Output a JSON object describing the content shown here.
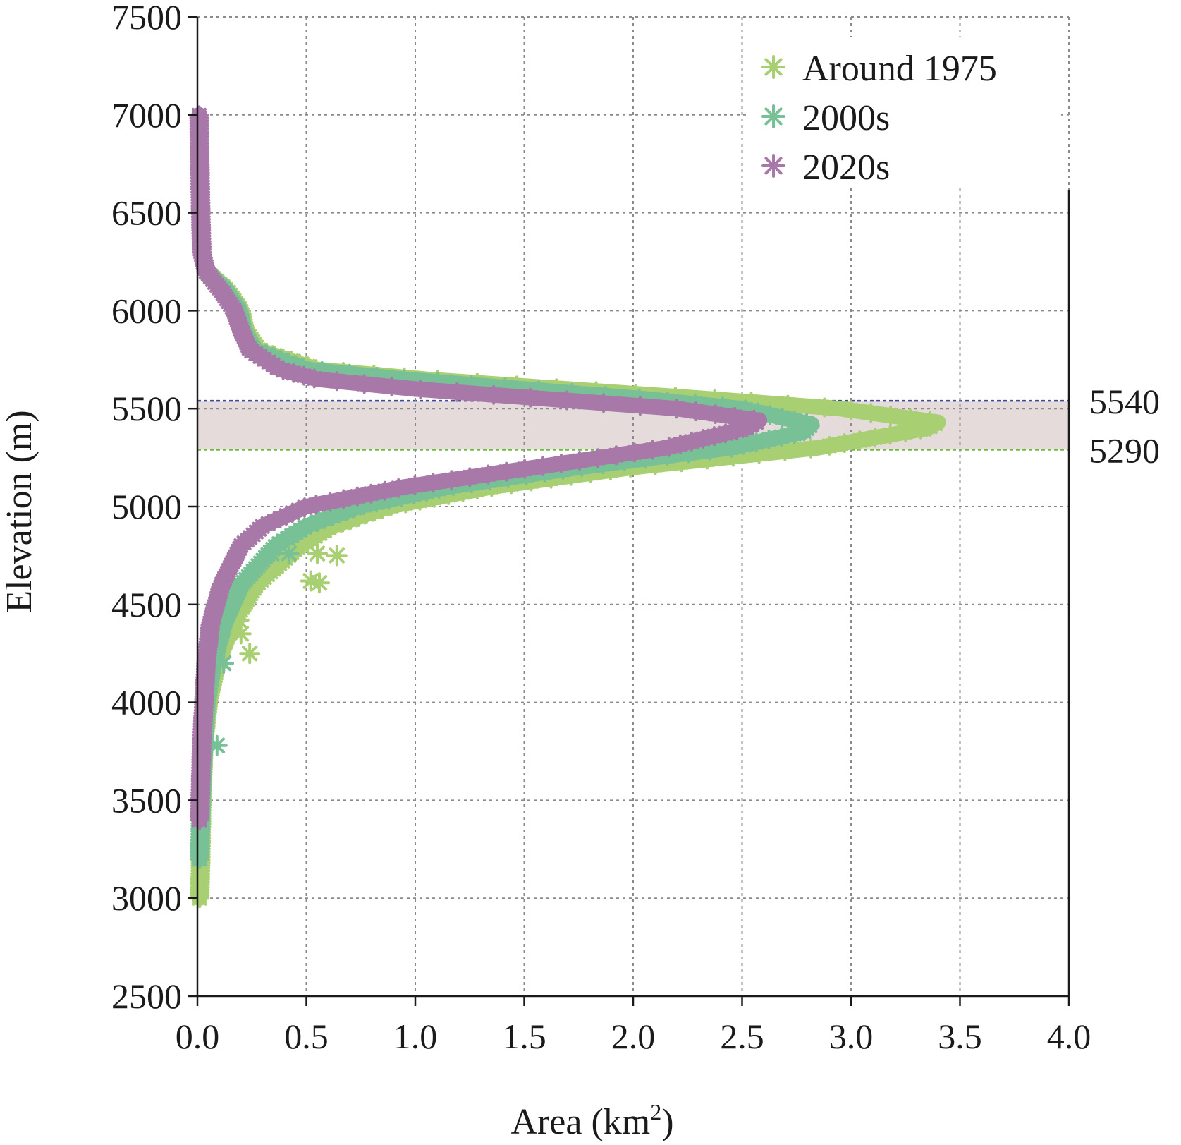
{
  "chart_data": {
    "type": "scatter",
    "title": "",
    "xlabel": "Area (km",
    "xlabel_sup": "2",
    "xlabel_close": ")",
    "ylabel": "Elevation (m)",
    "xlim": [
      0,
      4.0
    ],
    "ylim": [
      2500,
      7500
    ],
    "x_ticks": [
      "0.0",
      "0.5",
      "1.0",
      "1.5",
      "2.0",
      "2.5",
      "3.0",
      "3.5",
      "4.0"
    ],
    "y_ticks": [
      "2500",
      "3000",
      "3500",
      "4000",
      "4500",
      "5000",
      "5500",
      "6000",
      "6500",
      "7000",
      "7500"
    ],
    "grid": true,
    "legend_position": "top-right",
    "marker": "asterisk",
    "band": {
      "lower": 5290,
      "upper": 5540,
      "lower_label": "5290",
      "upper_label": "5540",
      "fill_color": "#e5dbdb",
      "lower_line_color": "#6dbb3c",
      "upper_line_color": "#3a4a9a"
    },
    "series": [
      {
        "name": "Around 1975",
        "color": "#a8cf72",
        "min_elevation": 3000,
        "max_elevation": 6200,
        "peak_area": 3.4,
        "peak_elevation": 5430,
        "profile": [
          [
            3000,
            0.01
          ],
          [
            3200,
            0.015
          ],
          [
            3500,
            0.02
          ],
          [
            3800,
            0.03
          ],
          [
            4000,
            0.05
          ],
          [
            4200,
            0.09
          ],
          [
            4400,
            0.16
          ],
          [
            4600,
            0.27
          ],
          [
            4800,
            0.47
          ],
          [
            4900,
            0.62
          ],
          [
            5000,
            0.88
          ],
          [
            5100,
            1.35
          ],
          [
            5200,
            2.0
          ],
          [
            5300,
            2.85
          ],
          [
            5400,
            3.35
          ],
          [
            5430,
            3.4
          ],
          [
            5500,
            2.95
          ],
          [
            5550,
            2.35
          ],
          [
            5600,
            1.7
          ],
          [
            5650,
            1.05
          ],
          [
            5700,
            0.55
          ],
          [
            5800,
            0.28
          ],
          [
            5900,
            0.22
          ],
          [
            6000,
            0.2
          ],
          [
            6100,
            0.14
          ],
          [
            6200,
            0.04
          ]
        ],
        "outliers": [
          [
            0.52,
            4620
          ],
          [
            0.56,
            4610
          ],
          [
            0.64,
            4750
          ],
          [
            0.55,
            4760
          ],
          [
            0.2,
            4350
          ],
          [
            0.24,
            4250
          ],
          [
            0.19,
            4420
          ]
        ]
      },
      {
        "name": "2000s",
        "color": "#78c096",
        "min_elevation": 3200,
        "max_elevation": 6200,
        "peak_area": 2.82,
        "peak_elevation": 5420,
        "profile": [
          [
            3200,
            0.01
          ],
          [
            3400,
            0.015
          ],
          [
            3600,
            0.02
          ],
          [
            3800,
            0.03
          ],
          [
            4000,
            0.04
          ],
          [
            4200,
            0.07
          ],
          [
            4400,
            0.12
          ],
          [
            4600,
            0.2
          ],
          [
            4800,
            0.36
          ],
          [
            4900,
            0.5
          ],
          [
            5000,
            0.74
          ],
          [
            5100,
            1.15
          ],
          [
            5200,
            1.75
          ],
          [
            5300,
            2.45
          ],
          [
            5380,
            2.78
          ],
          [
            5420,
            2.82
          ],
          [
            5500,
            2.5
          ],
          [
            5550,
            2.05
          ],
          [
            5600,
            1.5
          ],
          [
            5650,
            0.95
          ],
          [
            5700,
            0.5
          ],
          [
            5800,
            0.26
          ],
          [
            5900,
            0.21
          ],
          [
            6000,
            0.19
          ],
          [
            6100,
            0.13
          ],
          [
            6200,
            0.04
          ]
        ],
        "outliers": [
          [
            0.42,
            4760
          ],
          [
            0.34,
            4760
          ],
          [
            0.12,
            4200
          ],
          [
            0.09,
            3780
          ]
        ]
      },
      {
        "name": "2020s",
        "color": "#a878a8",
        "min_elevation": 3400,
        "max_elevation": 7000,
        "peak_area": 2.58,
        "peak_elevation": 5440,
        "profile": [
          [
            3400,
            0.01
          ],
          [
            3600,
            0.015
          ],
          [
            3800,
            0.02
          ],
          [
            4000,
            0.03
          ],
          [
            4200,
            0.04
          ],
          [
            4400,
            0.06
          ],
          [
            4600,
            0.11
          ],
          [
            4800,
            0.2
          ],
          [
            4900,
            0.3
          ],
          [
            5000,
            0.5
          ],
          [
            5100,
            0.95
          ],
          [
            5200,
            1.55
          ],
          [
            5300,
            2.15
          ],
          [
            5400,
            2.52
          ],
          [
            5440,
            2.58
          ],
          [
            5500,
            2.2
          ],
          [
            5550,
            1.6
          ],
          [
            5600,
            1.0
          ],
          [
            5650,
            0.55
          ],
          [
            5700,
            0.38
          ],
          [
            5800,
            0.24
          ],
          [
            5900,
            0.2
          ],
          [
            6000,
            0.17
          ],
          [
            6100,
            0.11
          ],
          [
            6200,
            0.04
          ],
          [
            6300,
            0.02
          ],
          [
            6500,
            0.015
          ],
          [
            6800,
            0.01
          ],
          [
            7000,
            0.008
          ]
        ],
        "outliers": []
      }
    ]
  }
}
